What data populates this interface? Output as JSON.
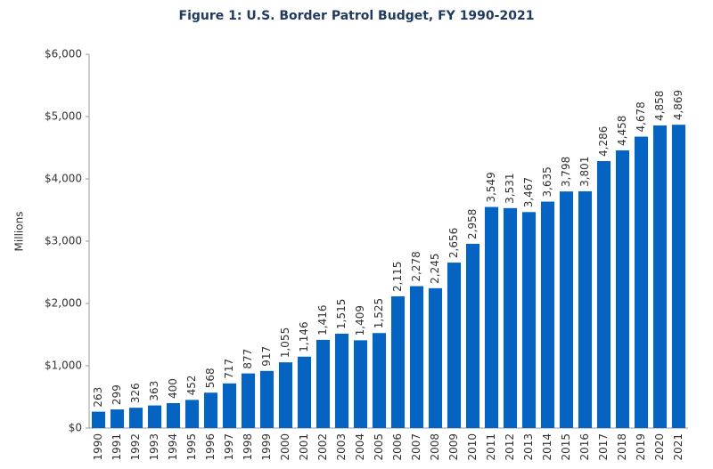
{
  "chart_data": {
    "type": "bar",
    "title": "Figure 1: U.S. Border Patrol Budget, FY 1990-2021",
    "y_label": "Millions",
    "categories": [
      "1990",
      "1991",
      "1992",
      "1993",
      "1994",
      "1995",
      "1996",
      "1997",
      "1998",
      "1999",
      "2000",
      "2001",
      "2002",
      "2003",
      "2004",
      "2005",
      "2006",
      "2007",
      "2008",
      "2009",
      "2010",
      "2011",
      "2012",
      "2013",
      "2014",
      "2015",
      "2016",
      "2017",
      "2018",
      "2019",
      "2020",
      "2021"
    ],
    "values": [
      263,
      299,
      326,
      363,
      400,
      452,
      568,
      717,
      877,
      917,
      1055,
      1146,
      1416,
      1515,
      1409,
      1525,
      2115,
      2278,
      2245,
      2656,
      2958,
      3549,
      3531,
      3467,
      3635,
      3798,
      3801,
      4286,
      4458,
      4678,
      4858,
      4869
    ],
    "value_labels": [
      "263",
      "299",
      "326",
      "363",
      "400",
      "452",
      "568",
      "717",
      "877",
      "917",
      "1,055",
      "1,146",
      "1,416",
      "1,515",
      "1,409",
      "1,525",
      "2,115",
      "2,278",
      "2,245",
      "2,656",
      "2,958",
      "3,549",
      "3,531",
      "3,467",
      "3,635",
      "3,798",
      "3,801",
      "4,286",
      "4,458",
      "4,678",
      "4,858",
      "4,869"
    ],
    "color": "#0563c1",
    "ylim": [
      0,
      6000
    ],
    "yticks": [
      {
        "value": 0,
        "label": "$0"
      },
      {
        "value": 1000,
        "label": "$1,000"
      },
      {
        "value": 2000,
        "label": "$2,000"
      },
      {
        "value": 3000,
        "label": "$3,000"
      },
      {
        "value": 4000,
        "label": "$4,000"
      },
      {
        "value": 5000,
        "label": "$5,000"
      },
      {
        "value": 6000,
        "label": "$6,000"
      }
    ],
    "grid": false
  }
}
